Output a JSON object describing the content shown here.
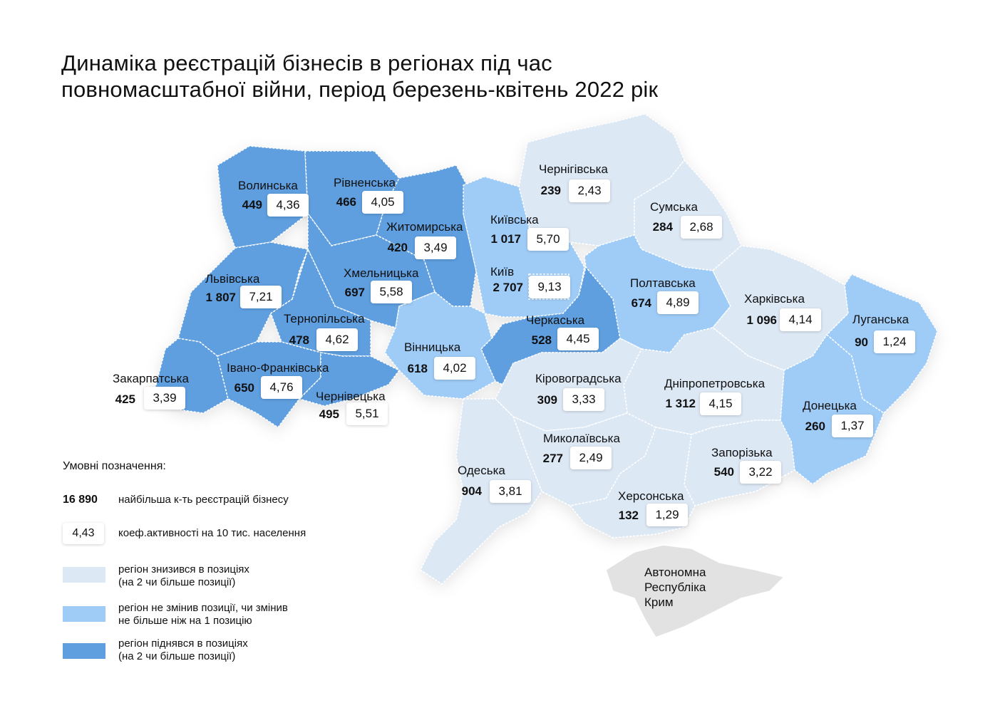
{
  "title_line1": "Динаміка реєстрацій бізнесів в регіонах під час",
  "title_line2": "повномасштабної війни, період березень-квітень 2022 рік",
  "colors": {
    "low": "#dde8f5",
    "mid": "#9fccf7",
    "high": "#5f9fe0",
    "crimea": "#e2e2e2"
  },
  "regions": [
    {
      "id": "volynska",
      "name": "Волинська",
      "count": "449",
      "coef": "4,36",
      "category": "high"
    },
    {
      "id": "rivnenska",
      "name": "Рівненська",
      "count": "466",
      "coef": "4,05",
      "category": "high"
    },
    {
      "id": "zhytomyrska",
      "name": "Житомирська",
      "count": "420",
      "coef": "3,49",
      "category": "high"
    },
    {
      "id": "kyivska",
      "name": "Київська",
      "count": "1 017",
      "coef": "5,70",
      "category": "mid"
    },
    {
      "id": "kyiv",
      "name": "Київ",
      "count": "2 707",
      "coef": "9,13",
      "category": "mid"
    },
    {
      "id": "chernihivska",
      "name": "Чернігівська",
      "count": "239",
      "coef": "2,43",
      "category": "low"
    },
    {
      "id": "sumska",
      "name": "Сумська",
      "count": "284",
      "coef": "2,68",
      "category": "low"
    },
    {
      "id": "lvivska",
      "name": "Львівська",
      "count": "1 807",
      "coef": "7,21",
      "category": "high"
    },
    {
      "id": "khmelnytska",
      "name": "Хмельницька",
      "count": "697",
      "coef": "5,58",
      "category": "high"
    },
    {
      "id": "ternopilska",
      "name": "Тернопільська",
      "count": "478",
      "coef": "4,62",
      "category": "high"
    },
    {
      "id": "poltavska",
      "name": "Полтавська",
      "count": "674",
      "coef": "4,89",
      "category": "mid"
    },
    {
      "id": "kharkivska",
      "name": "Харківська",
      "count": "1 096",
      "coef": "4,14",
      "category": "low"
    },
    {
      "id": "luhanska",
      "name": "Луганська",
      "count": "90",
      "coef": "1,24",
      "category": "mid"
    },
    {
      "id": "cherkaska",
      "name": "Черкаська",
      "count": "528",
      "coef": "4,45",
      "category": "high"
    },
    {
      "id": "vinnytska",
      "name": "Вінницька",
      "count": "618",
      "coef": "4,02",
      "category": "mid"
    },
    {
      "id": "zakarpatska",
      "name": "Закарпатська",
      "count": "425",
      "coef": "3,39",
      "category": "high"
    },
    {
      "id": "ivanofrankivska",
      "name": "Івано-Франківська",
      "count": "650",
      "coef": "4,76",
      "category": "high"
    },
    {
      "id": "chernivetska",
      "name": "Чернівецька",
      "count": "495",
      "coef": "5,51",
      "category": "high"
    },
    {
      "id": "kirovohradska",
      "name": "Кіровоградська",
      "count": "309",
      "coef": "3,33",
      "category": "low"
    },
    {
      "id": "dnipropetrovska",
      "name": "Дніпропетровська",
      "count": "1 312",
      "coef": "4,15",
      "category": "low"
    },
    {
      "id": "donetska",
      "name": "Донецька",
      "count": "260",
      "coef": "1,37",
      "category": "mid"
    },
    {
      "id": "mykolaivska",
      "name": "Миколаївська",
      "count": "277",
      "coef": "2,49",
      "category": "low"
    },
    {
      "id": "zaporizka",
      "name": "Запорізька",
      "count": "540",
      "coef": "3,22",
      "category": "low"
    },
    {
      "id": "odeska",
      "name": "Одеська",
      "count": "904",
      "coef": "3,81",
      "category": "low"
    },
    {
      "id": "khersonska",
      "name": "Херсонська",
      "count": "132",
      "coef": "1,29",
      "category": "low"
    }
  ],
  "crimea": {
    "line1": "Автономна",
    "line2": "Республіка",
    "line3": "Крим"
  },
  "legend": {
    "title": "Умовні позначення:",
    "count_example": "16 890",
    "count_text": "найбільша к-ть реєстрацій бізнесу",
    "coef_example": "4,43",
    "coef_text": "коеф.активності на 10 тис. населення",
    "low_line1": "регіон знизився в позиціях",
    "low_line2": "(на 2 чи більше позиції)",
    "mid_line1": "регіон не змінив позиції, чи змінив",
    "mid_line2": "не більше ніж на 1 позицію",
    "high_line1": "регіон піднявся в позиціях",
    "high_line2": "(на 2 чи більше позиції)"
  }
}
